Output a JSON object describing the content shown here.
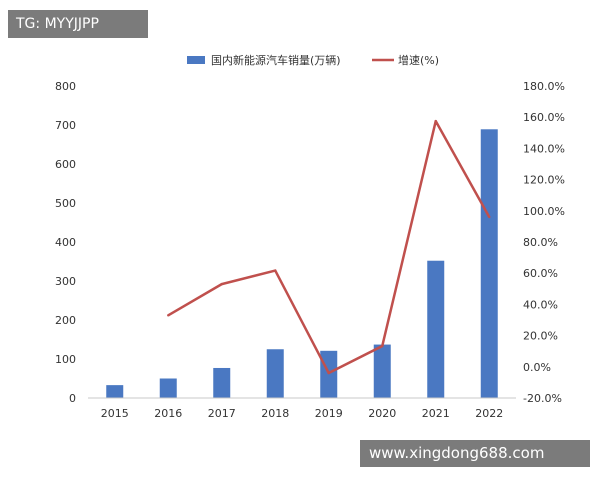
{
  "watermark_top": "TG: MYYJJPP",
  "watermark_bottom": "www.xingdong688.com",
  "chart_data": {
    "type": "bar+line",
    "categories": [
      "2015",
      "2016",
      "2017",
      "2018",
      "2019",
      "2020",
      "2021",
      "2022"
    ],
    "series": [
      {
        "name": "国内新能源汽车销量(万辆)",
        "type": "bar",
        "axis": "left",
        "color": "#4a78c2",
        "values": [
          33,
          50,
          77,
          125,
          121,
          137,
          352,
          689
        ]
      },
      {
        "name": "增速(%)",
        "type": "line",
        "axis": "right",
        "color": "#c0504d",
        "values": [
          null,
          33.0,
          53.0,
          61.7,
          -4.0,
          13.3,
          157.5,
          96.0
        ]
      }
    ],
    "y_left": {
      "min": 0,
      "max": 800,
      "ticks": [
        "0",
        "100",
        "200",
        "300",
        "400",
        "500",
        "600",
        "700",
        "800"
      ]
    },
    "y_right": {
      "min": -20,
      "max": 180,
      "ticks": [
        "-20.0%",
        "0.0%",
        "20.0%",
        "40.0%",
        "60.0%",
        "80.0%",
        "100.0%",
        "120.0%",
        "140.0%",
        "160.0%",
        "180.0%"
      ]
    },
    "legend_position": "top",
    "grid": false
  }
}
